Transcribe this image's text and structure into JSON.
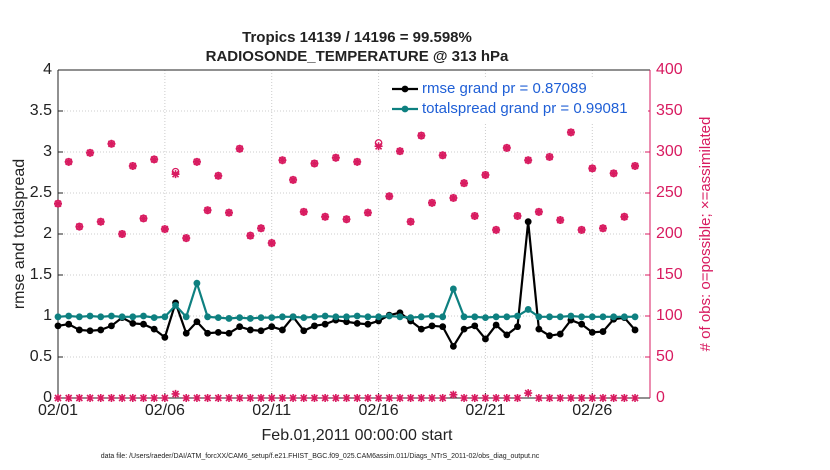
{
  "chart_data": {
    "type": "line",
    "title": "Tropics 14139 / 14196 = 99.598%",
    "subtitle": "RADIOSONDE_TEMPERATURE @ 313 hPa",
    "x_label": "Feb.01,2011 00:00:00 start",
    "y_label": "rmse and totalspread",
    "y2_label": "# of obs: o=possible; ×=assimilated",
    "footnote": "data file: /Users/raeder/DAI/ATM_forcXX/CAM6_setup/f.e21.FHIST_BGC.f09_025.CAM6assim.011/Diags_NTrS_2011-02/obs_diag_output.nc",
    "legend_position": "upper right",
    "grid": true,
    "x": [
      0,
      0.5,
      1,
      1.5,
      2,
      2.5,
      3,
      3.5,
      4,
      4.5,
      5,
      5.5,
      6,
      6.5,
      7,
      7.5,
      8,
      8.5,
      9,
      9.5,
      10,
      10.5,
      11,
      11.5,
      12,
      12.5,
      13,
      13.5,
      14,
      14.5,
      15,
      15.5,
      16,
      16.5,
      17,
      17.5,
      18,
      18.5,
      19,
      19.5,
      20,
      20.5,
      21,
      21.5,
      22,
      22.5,
      23,
      23.5,
      24,
      24.5,
      25,
      25.5,
      26,
      26.5,
      27
    ],
    "xlim": [
      0,
      27.7
    ],
    "xticks": [
      {
        "value": 0,
        "label": "02/01"
      },
      {
        "value": 5,
        "label": "02/06"
      },
      {
        "value": 10,
        "label": "02/11"
      },
      {
        "value": 15,
        "label": "02/16"
      },
      {
        "value": 20,
        "label": "02/21"
      },
      {
        "value": 25,
        "label": "02/26"
      }
    ],
    "ylim": [
      0,
      4
    ],
    "yticks": [
      0,
      0.5,
      1,
      1.5,
      2,
      2.5,
      3,
      3.5,
      4
    ],
    "y2lim": [
      0,
      400
    ],
    "y2ticks": [
      0,
      50,
      100,
      150,
      200,
      250,
      300,
      350,
      400
    ],
    "series": [
      {
        "name": "rmse grand pr = 0.87089",
        "color": "#000000",
        "marker": "dot",
        "line": true,
        "values": [
          0.88,
          0.9,
          0.83,
          0.82,
          0.83,
          0.88,
          0.98,
          0.91,
          0.9,
          0.84,
          0.74,
          1.16,
          0.79,
          0.93,
          0.79,
          0.8,
          0.79,
          0.87,
          0.83,
          0.82,
          0.87,
          0.83,
          0.99,
          0.82,
          0.88,
          0.9,
          0.95,
          0.93,
          0.91,
          0.9,
          0.94,
          1.01,
          1.04,
          0.94,
          0.84,
          0.88,
          0.87,
          0.63,
          0.84,
          0.88,
          0.72,
          0.89,
          0.77,
          0.87,
          2.15,
          0.84,
          0.76,
          0.78,
          0.95,
          0.9,
          0.8,
          0.81,
          0.96,
          0.98,
          0.83
        ]
      },
      {
        "name": "totalspread grand pr = 0.99081",
        "color": "#0e8080",
        "marker": "dot",
        "line": true,
        "values": [
          0.99,
          1.0,
          0.99,
          1.0,
          0.99,
          1.0,
          0.99,
          0.99,
          1.0,
          0.98,
          0.99,
          1.13,
          0.99,
          1.4,
          0.99,
          0.98,
          0.97,
          0.98,
          0.97,
          0.98,
          0.98,
          0.99,
          0.99,
          0.98,
          0.99,
          1.0,
          0.99,
          0.99,
          1.0,
          0.99,
          0.99,
          1.0,
          0.99,
          0.98,
          0.99,
          1.0,
          0.99,
          1.33,
          0.99,
          0.99,
          0.98,
          0.99,
          0.99,
          1.0,
          1.08,
          0.99,
          0.99,
          0.99,
          1.0,
          0.99,
          0.99,
          0.99,
          0.99,
          0.99,
          0.99
        ]
      },
      {
        "color": "#d81b60",
        "marker": "circle",
        "axis": "y2",
        "values": [
          237,
          288,
          209,
          299,
          215,
          310,
          200,
          283,
          219,
          291,
          206,
          276,
          195,
          288,
          229,
          271,
          226,
          304,
          198,
          207,
          189,
          290,
          266,
          227,
          286,
          221,
          293,
          218,
          288,
          226,
          311,
          246,
          301,
          215,
          320,
          238,
          296,
          244,
          262,
          222,
          272,
          205,
          305,
          222,
          290,
          227,
          294,
          217,
          324,
          205,
          280,
          207,
          274,
          221,
          283
        ]
      },
      {
        "color": "#d81b60",
        "marker": "star",
        "axis": "y2",
        "values": [
          237,
          288,
          209,
          299,
          215,
          310,
          200,
          283,
          219,
          291,
          206,
          273,
          195,
          288,
          229,
          271,
          226,
          304,
          198,
          207,
          189,
          290,
          266,
          227,
          286,
          221,
          293,
          218,
          288,
          226,
          307,
          246,
          301,
          215,
          320,
          238,
          296,
          244,
          262,
          222,
          272,
          205,
          305,
          222,
          290,
          227,
          294,
          217,
          324,
          205,
          280,
          207,
          274,
          221,
          283
        ]
      },
      {
        "color": "#d81b60",
        "marker": "star",
        "axis": "y2",
        "values": [
          0,
          0,
          0,
          0,
          0,
          0,
          0,
          0,
          0,
          0,
          0,
          5,
          0,
          0,
          0,
          0,
          0,
          0,
          0,
          0,
          0,
          0,
          0,
          0,
          0,
          0,
          0,
          0,
          0,
          0,
          0,
          0,
          0,
          0,
          0,
          0,
          0,
          4,
          0,
          0,
          0,
          0,
          0,
          0,
          6,
          0,
          0,
          0,
          0,
          0,
          0,
          0,
          0,
          0,
          0
        ]
      }
    ]
  }
}
